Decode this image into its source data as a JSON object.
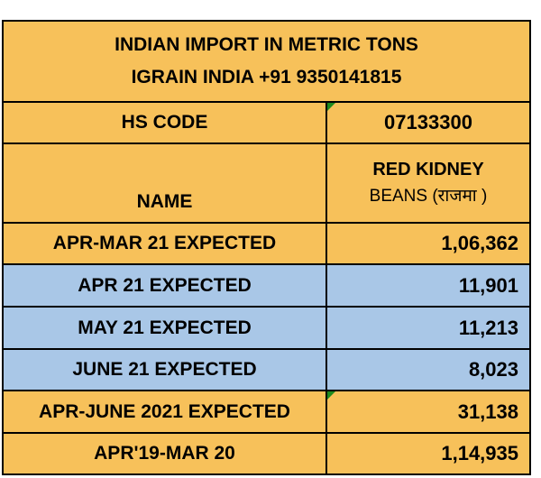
{
  "title": {
    "line1": "INDIAN IMPORT IN METRIC TONS",
    "line2": "IGRAIN INDIA +91 9350141815"
  },
  "hs": {
    "label": "HS CODE",
    "value": "07133300"
  },
  "name": {
    "label": "NAME",
    "value_line1": "RED KIDNEY",
    "value_line2": "BEANS  (राजमा )"
  },
  "rows": [
    {
      "label": "APR-MAR 21 EXPECTED",
      "value": "1,06,362",
      "color": "#f7c15a"
    },
    {
      "label": "APR 21 EXPECTED",
      "value": "11,901",
      "color": "#a9c7e7"
    },
    {
      "label": "MAY 21 EXPECTED",
      "value": "11,213",
      "color": "#a9c7e7"
    },
    {
      "label": "JUNE 21 EXPECTED",
      "value": "8,023",
      "color": "#a9c7e7"
    },
    {
      "label": "APR-JUNE 2021 EXPECTED",
      "value": "31,138",
      "color": "#f7c15a"
    },
    {
      "label": "APR'19-MAR 20",
      "value": "1,14,935",
      "color": "#f7c15a"
    }
  ],
  "colors": {
    "orange": "#f7c15a",
    "blue": "#a9c7e7",
    "corner_marker": "#1e8a1e"
  }
}
